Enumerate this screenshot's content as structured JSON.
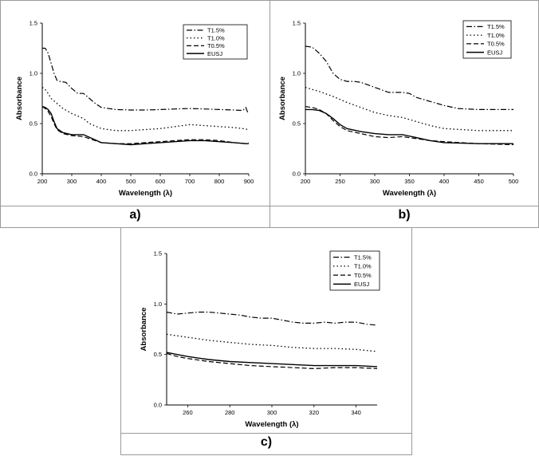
{
  "panels": [
    {
      "label": "a)"
    },
    {
      "label": "b)"
    },
    {
      "label": "c)"
    }
  ],
  "chart_data": [
    {
      "type": "line",
      "panel": "a)",
      "xlabel": "Wavelength (λ)",
      "ylabel": "Absorbance",
      "xlim": [
        200,
        900
      ],
      "ylim": [
        0.0,
        1.5
      ],
      "xticks": [
        200,
        300,
        400,
        500,
        600,
        700,
        800,
        900
      ],
      "yticks": [
        0.0,
        0.5,
        1.0,
        1.5
      ],
      "legend_position": "top-right",
      "series": [
        {
          "name": "T1.5%",
          "style": "dashdot",
          "x": [
            200,
            210,
            220,
            230,
            240,
            250,
            260,
            280,
            300,
            320,
            340,
            360,
            380,
            400,
            450,
            500,
            550,
            600,
            650,
            700,
            750,
            800,
            850,
            880,
            890,
            895,
            900
          ],
          "y": [
            1.25,
            1.25,
            1.2,
            1.1,
            1.0,
            0.93,
            0.92,
            0.91,
            0.85,
            0.8,
            0.8,
            0.75,
            0.7,
            0.66,
            0.64,
            0.635,
            0.635,
            0.64,
            0.645,
            0.65,
            0.645,
            0.64,
            0.635,
            0.63,
            0.66,
            0.62,
            0.6
          ]
        },
        {
          "name": "T1.0%",
          "style": "dotted",
          "x": [
            200,
            210,
            220,
            230,
            250,
            270,
            300,
            340,
            360,
            400,
            450,
            500,
            600,
            650,
            700,
            750,
            800,
            850,
            880,
            900
          ],
          "y": [
            0.86,
            0.84,
            0.8,
            0.75,
            0.7,
            0.65,
            0.6,
            0.55,
            0.5,
            0.45,
            0.43,
            0.43,
            0.45,
            0.47,
            0.49,
            0.48,
            0.47,
            0.46,
            0.45,
            0.44
          ]
        },
        {
          "name": "T0.5%",
          "style": "dashed",
          "x": [
            200,
            210,
            220,
            230,
            240,
            250,
            270,
            300,
            340,
            370,
            400,
            450,
            500,
            550,
            600,
            650,
            700,
            750,
            800,
            850,
            890,
            900
          ],
          "y": [
            0.67,
            0.65,
            0.62,
            0.57,
            0.5,
            0.44,
            0.4,
            0.38,
            0.37,
            0.34,
            0.31,
            0.3,
            0.3,
            0.31,
            0.32,
            0.33,
            0.34,
            0.34,
            0.33,
            0.31,
            0.3,
            0.31
          ]
        },
        {
          "name": "EUSJ",
          "style": "solid",
          "x": [
            200,
            210,
            220,
            230,
            240,
            250,
            270,
            300,
            340,
            370,
            400,
            450,
            500,
            550,
            600,
            650,
            700,
            750,
            800,
            850,
            890,
            900
          ],
          "y": [
            0.67,
            0.66,
            0.64,
            0.6,
            0.52,
            0.45,
            0.41,
            0.39,
            0.39,
            0.35,
            0.31,
            0.3,
            0.29,
            0.3,
            0.31,
            0.32,
            0.33,
            0.33,
            0.32,
            0.31,
            0.3,
            0.3
          ]
        }
      ]
    },
    {
      "type": "line",
      "panel": "b)",
      "xlabel": "Wavelength (λ)",
      "ylabel": "Absorbance",
      "xlim": [
        200,
        500
      ],
      "ylim": [
        0.0,
        1.5
      ],
      "xticks": [
        200,
        250,
        300,
        350,
        400,
        450,
        500
      ],
      "yticks": [
        0.0,
        0.5,
        1.0,
        1.5
      ],
      "legend_position": "top-right",
      "series": [
        {
          "name": "T1.5%",
          "style": "dashdot",
          "x": [
            200,
            210,
            220,
            230,
            240,
            250,
            260,
            270,
            280,
            300,
            320,
            340,
            350,
            360,
            380,
            400,
            420,
            450,
            500
          ],
          "y": [
            1.27,
            1.26,
            1.2,
            1.12,
            1.0,
            0.94,
            0.92,
            0.92,
            0.91,
            0.86,
            0.81,
            0.81,
            0.8,
            0.76,
            0.72,
            0.68,
            0.65,
            0.64,
            0.64
          ]
        },
        {
          "name": "T1.0%",
          "style": "dotted",
          "x": [
            200,
            210,
            220,
            240,
            260,
            280,
            300,
            320,
            340,
            360,
            380,
            400,
            450,
            500
          ],
          "y": [
            0.86,
            0.84,
            0.82,
            0.77,
            0.71,
            0.66,
            0.61,
            0.58,
            0.56,
            0.52,
            0.48,
            0.45,
            0.43,
            0.43
          ]
        },
        {
          "name": "T0.5%",
          "style": "dashed",
          "x": [
            200,
            210,
            220,
            230,
            240,
            250,
            260,
            280,
            300,
            320,
            340,
            360,
            380,
            400,
            450,
            500
          ],
          "y": [
            0.67,
            0.66,
            0.64,
            0.6,
            0.53,
            0.47,
            0.43,
            0.4,
            0.37,
            0.36,
            0.37,
            0.35,
            0.33,
            0.32,
            0.3,
            0.29
          ]
        },
        {
          "name": "EUSJ",
          "style": "solid",
          "x": [
            200,
            210,
            220,
            230,
            240,
            250,
            260,
            280,
            300,
            320,
            340,
            360,
            380,
            400,
            450,
            500
          ],
          "y": [
            0.64,
            0.64,
            0.63,
            0.6,
            0.55,
            0.49,
            0.45,
            0.42,
            0.4,
            0.39,
            0.39,
            0.36,
            0.33,
            0.31,
            0.3,
            0.3
          ]
        }
      ]
    },
    {
      "type": "line",
      "panel": "c)",
      "xlabel": "Wavelength (λ)",
      "ylabel": "Absorbance",
      "xlim": [
        250,
        350
      ],
      "ylim": [
        0.0,
        1.5
      ],
      "xticks": [
        260,
        280,
        300,
        320,
        340
      ],
      "yticks": [
        0.0,
        0.5,
        1.0,
        1.5
      ],
      "legend_position": "top-right",
      "series": [
        {
          "name": "T1.5%",
          "style": "dashdot",
          "x": [
            250,
            255,
            260,
            265,
            270,
            275,
            280,
            285,
            290,
            295,
            300,
            305,
            310,
            315,
            320,
            325,
            330,
            335,
            340,
            345,
            350
          ],
          "y": [
            0.92,
            0.9,
            0.91,
            0.92,
            0.92,
            0.91,
            0.9,
            0.89,
            0.87,
            0.86,
            0.86,
            0.84,
            0.82,
            0.81,
            0.81,
            0.82,
            0.81,
            0.82,
            0.82,
            0.8,
            0.79
          ]
        },
        {
          "name": "T1.0%",
          "style": "dotted",
          "x": [
            250,
            260,
            270,
            280,
            290,
            300,
            310,
            320,
            330,
            340,
            350
          ],
          "y": [
            0.7,
            0.67,
            0.64,
            0.62,
            0.6,
            0.59,
            0.57,
            0.56,
            0.56,
            0.55,
            0.53
          ]
        },
        {
          "name": "T0.5%",
          "style": "dashed",
          "x": [
            250,
            255,
            260,
            270,
            280,
            290,
            300,
            310,
            320,
            330,
            340,
            350
          ],
          "y": [
            0.51,
            0.48,
            0.46,
            0.43,
            0.41,
            0.39,
            0.38,
            0.37,
            0.36,
            0.37,
            0.37,
            0.36
          ]
        },
        {
          "name": "EUSJ",
          "style": "solid",
          "x": [
            250,
            255,
            260,
            270,
            280,
            290,
            300,
            310,
            320,
            330,
            340,
            350
          ],
          "y": [
            0.52,
            0.5,
            0.48,
            0.45,
            0.43,
            0.42,
            0.41,
            0.4,
            0.39,
            0.39,
            0.39,
            0.38
          ]
        }
      ]
    }
  ]
}
